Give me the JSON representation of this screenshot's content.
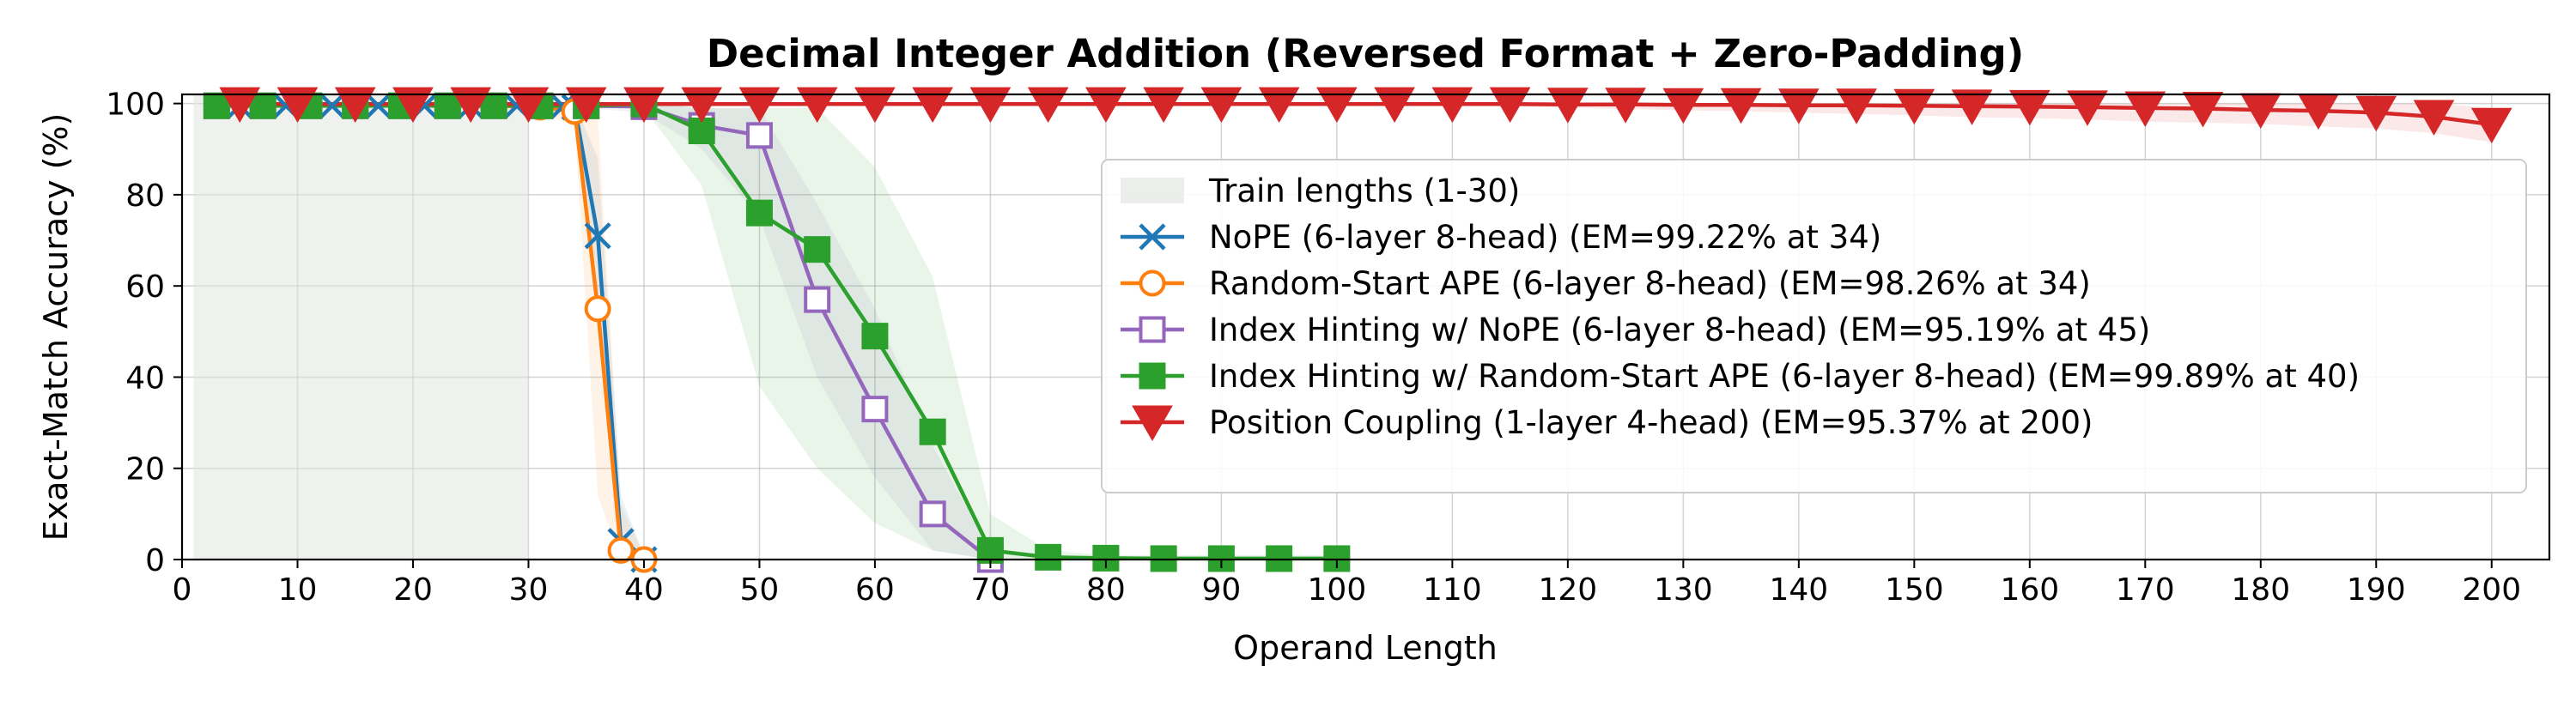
{
  "chart_data": {
    "type": "line",
    "title": "Decimal Integer Addition (Reversed Format + Zero-Padding)",
    "xlabel": "Operand Length",
    "ylabel": "Exact-Match Accuracy (%)",
    "xlim": [
      0,
      205
    ],
    "ylim": [
      0,
      102
    ],
    "xticks": [
      0,
      10,
      20,
      30,
      40,
      50,
      60,
      70,
      80,
      90,
      100,
      110,
      120,
      130,
      140,
      150,
      160,
      170,
      180,
      190,
      200
    ],
    "yticks": [
      0,
      20,
      40,
      60,
      80,
      100
    ],
    "grid": true,
    "legend_position": "center-right",
    "train_region": {
      "label": "Train lengths (1-30)",
      "x": [
        1,
        30
      ],
      "color": "#dfe3e0"
    },
    "series": [
      {
        "name": "NoPE (6-layer 8-head) (EM=99.22% at 34)",
        "color": "#1f77b4",
        "marker": "x",
        "x": [
          3,
          5,
          7,
          9,
          11,
          13,
          15,
          17,
          19,
          21,
          23,
          25,
          27,
          29,
          31,
          33,
          34,
          36,
          38,
          40
        ],
        "y": [
          99.5,
          99.5,
          99.5,
          99.5,
          99.5,
          99.5,
          99.5,
          99.5,
          99.5,
          99.5,
          99.5,
          99.5,
          99.5,
          99.5,
          99.5,
          99.4,
          99.2,
          71,
          4,
          0
        ],
        "band_lo": [
          99,
          99,
          99,
          99,
          99,
          99,
          99,
          99,
          99,
          99,
          99,
          99,
          99,
          99,
          99,
          98,
          97,
          55,
          0,
          0
        ],
        "band_hi": [
          100,
          100,
          100,
          100,
          100,
          100,
          100,
          100,
          100,
          100,
          100,
          100,
          100,
          100,
          100,
          100,
          100,
          88,
          14,
          1
        ]
      },
      {
        "name": "Random-Start APE (6-layer 8-head) (EM=98.26% at 34)",
        "color": "#ff7f0e",
        "marker": "circle",
        "x": [
          3,
          7,
          11,
          15,
          19,
          23,
          27,
          31,
          34,
          36,
          38,
          40
        ],
        "y": [
          99.5,
          99.5,
          99.5,
          99.5,
          99.5,
          99.5,
          99.5,
          99.2,
          98.26,
          55,
          2,
          0
        ],
        "band_lo": [
          99,
          99,
          99,
          99,
          99,
          99,
          99,
          98,
          95,
          14,
          0,
          0
        ],
        "band_hi": [
          100,
          100,
          100,
          100,
          100,
          100,
          100,
          100,
          100,
          97,
          12,
          1
        ]
      },
      {
        "name": "Index Hinting w/ NoPE (6-layer 8-head) (EM=95.19% at 45)",
        "color": "#9467bd",
        "marker": "square-open",
        "x": [
          3,
          7,
          11,
          15,
          19,
          23,
          27,
          31,
          35,
          40,
          45,
          50,
          55,
          60,
          65,
          70
        ],
        "y": [
          99.5,
          99.5,
          99.5,
          99.5,
          99.5,
          99.5,
          99.5,
          99.5,
          99.5,
          99.3,
          95.19,
          93,
          57,
          33,
          10,
          0
        ],
        "band_lo": [
          99,
          99,
          99,
          99,
          99,
          99,
          99,
          99,
          99,
          98,
          90,
          75,
          40,
          18,
          2,
          0
        ],
        "band_hi": [
          100,
          100,
          100,
          100,
          100,
          100,
          100,
          100,
          100,
          100,
          99,
          99,
          78,
          55,
          25,
          2
        ]
      },
      {
        "name": "Index Hinting w/ Random-Start APE (6-layer 8-head) (EM=99.89% at 40)",
        "color": "#2ca02c",
        "marker": "square",
        "x": [
          3,
          7,
          11,
          15,
          19,
          23,
          27,
          31,
          35,
          40,
          45,
          50,
          55,
          60,
          65,
          70,
          75,
          80,
          85,
          90,
          95,
          100
        ],
        "y": [
          99.5,
          99.5,
          99.5,
          99.5,
          99.5,
          99.5,
          99.5,
          99.5,
          99.5,
          99.89,
          94,
          76,
          68,
          49,
          28,
          2,
          0.5,
          0.3,
          0.2,
          0.2,
          0.2,
          0.2
        ],
        "band_lo": [
          99,
          99,
          99,
          99,
          99,
          99,
          99,
          99,
          99,
          99,
          82,
          38,
          20,
          8,
          2,
          0,
          0,
          0,
          0,
          0,
          0,
          0
        ],
        "band_hi": [
          100,
          100,
          100,
          100,
          100,
          100,
          100,
          100,
          100,
          100,
          99,
          99,
          99,
          86,
          62,
          10,
          2,
          1,
          1,
          1,
          1,
          1
        ]
      },
      {
        "name": "Position Coupling (1-layer 4-head) (EM=95.37% at 200)",
        "color": "#d62728",
        "marker": "triangle-down",
        "x": [
          5,
          10,
          15,
          20,
          25,
          30,
          35,
          40,
          45,
          50,
          55,
          60,
          65,
          70,
          75,
          80,
          85,
          90,
          95,
          100,
          105,
          110,
          115,
          120,
          125,
          130,
          135,
          140,
          145,
          150,
          155,
          160,
          165,
          170,
          175,
          180,
          185,
          190,
          195,
          200
        ],
        "y": [
          99.9,
          99.9,
          99.9,
          99.9,
          99.9,
          99.9,
          99.9,
          99.9,
          99.9,
          99.9,
          99.9,
          99.9,
          99.9,
          99.9,
          99.9,
          99.9,
          99.9,
          99.9,
          99.9,
          99.9,
          99.9,
          99.9,
          99.9,
          99.8,
          99.8,
          99.7,
          99.7,
          99.6,
          99.6,
          99.5,
          99.4,
          99.3,
          99.2,
          99.0,
          98.9,
          98.6,
          98.4,
          98.0,
          97.1,
          95.37
        ],
        "band_lo": [
          99.5,
          99.5,
          99.5,
          99.5,
          99.5,
          99.5,
          99.5,
          99.5,
          99.5,
          99.5,
          99.5,
          99.5,
          99.5,
          99.5,
          99.5,
          99.5,
          99.5,
          99.5,
          99.5,
          99.5,
          99.5,
          99.5,
          99.4,
          99,
          98.8,
          98.5,
          98.3,
          98,
          97.7,
          97.4,
          97,
          96.8,
          96.5,
          96,
          95.8,
          95.5,
          95,
          94.5,
          93.5,
          91.5
        ],
        "band_hi": [
          100,
          100,
          100,
          100,
          100,
          100,
          100,
          100,
          100,
          100,
          100,
          100,
          100,
          100,
          100,
          100,
          100,
          100,
          100,
          100,
          100,
          100,
          100,
          100,
          100,
          100,
          100,
          100,
          100,
          100,
          100,
          100,
          100,
          100,
          100,
          100,
          100,
          100,
          100,
          99
        ]
      }
    ]
  }
}
